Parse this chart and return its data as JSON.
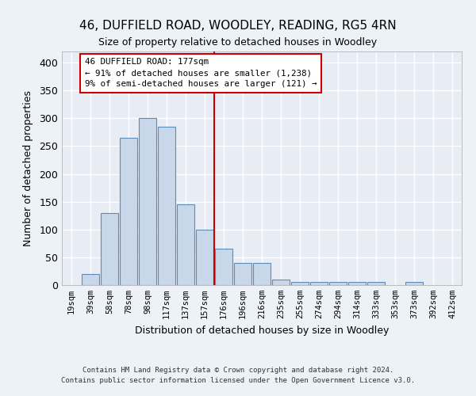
{
  "title": "46, DUFFIELD ROAD, WOODLEY, READING, RG5 4RN",
  "subtitle": "Size of property relative to detached houses in Woodley",
  "xlabel": "Distribution of detached houses by size in Woodley",
  "ylabel": "Number of detached properties",
  "bar_color": "#c8d8ea",
  "bar_edge_color": "#5b8db8",
  "background_color": "#e8edf5",
  "fig_bg_color": "#edf1f8",
  "grid_color": "#ffffff",
  "categories": [
    "19sqm",
    "39sqm",
    "58sqm",
    "78sqm",
    "98sqm",
    "117sqm",
    "137sqm",
    "157sqm",
    "176sqm",
    "196sqm",
    "216sqm",
    "235sqm",
    "255sqm",
    "274sqm",
    "294sqm",
    "314sqm",
    "333sqm",
    "353sqm",
    "373sqm",
    "392sqm",
    "412sqm"
  ],
  "values": [
    0,
    20,
    130,
    265,
    300,
    285,
    145,
    100,
    65,
    40,
    40,
    10,
    5,
    5,
    5,
    5,
    5,
    0,
    5,
    0,
    0
  ],
  "ylim": [
    0,
    420
  ],
  "yticks": [
    0,
    50,
    100,
    150,
    200,
    250,
    300,
    350,
    400
  ],
  "property_bar_index": 8,
  "property_line_color": "#cc0000",
  "annotation_title": "46 DUFFIELD ROAD: 177sqm",
  "annotation_line1": "← 91% of detached houses are smaller (1,238)",
  "annotation_line2": "9% of semi-detached houses are larger (121) →",
  "annotation_box_color": "#cc0000",
  "footer_line1": "Contains HM Land Registry data © Crown copyright and database right 2024.",
  "footer_line2": "Contains public sector information licensed under the Open Government Licence v3.0."
}
